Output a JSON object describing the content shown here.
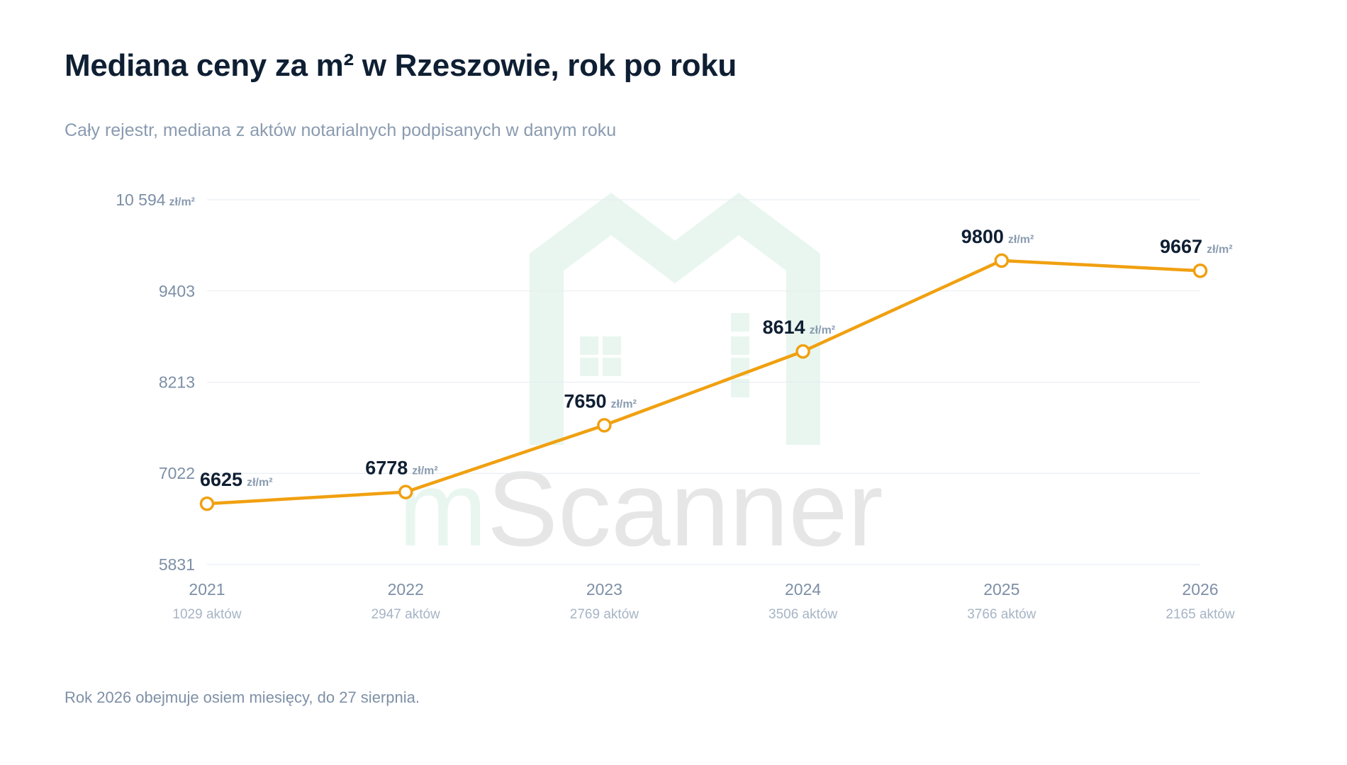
{
  "title": "Mediana ceny za m² w Rzeszowie, rok po roku",
  "subtitle": "Cały rejestr, mediana z aktów notarialnych podpisanych w danym roku",
  "footnote": "Rok 2026 obejmuje osiem miesięcy, do 27 sierpnia.",
  "watermark": {
    "text_first": "m",
    "text_rest": "Scanner"
  },
  "colors": {
    "line": "#f0a010",
    "marker_fill": "#ffffff",
    "grid": "#e6ebf0",
    "watermark_house": "#e8f6ef",
    "watermark_text": "#e6e6e6"
  },
  "chart_data": {
    "type": "line",
    "unit": "zł/m²",
    "categories": [
      "2021",
      "2022",
      "2023",
      "2024",
      "2025",
      "2026"
    ],
    "sublabels": [
      "1029 aktów",
      "2947 aktów",
      "2769 aktów",
      "3506 aktów",
      "3766 aktów",
      "2165 aktów"
    ],
    "values": [
      6625,
      6778,
      7650,
      8614,
      9800,
      9667
    ],
    "value_labels": [
      "6625",
      "6778",
      "7650",
      "8614",
      "9800",
      "9667"
    ],
    "ylim": [
      5831,
      10594
    ],
    "yticks": [
      5831,
      7022,
      8213,
      9403,
      10594
    ],
    "ytick_labels": [
      "5831",
      "7022",
      "8213",
      "9403",
      "10 594"
    ],
    "ytick_unit_on_top": "zł/m²",
    "grid": true
  }
}
